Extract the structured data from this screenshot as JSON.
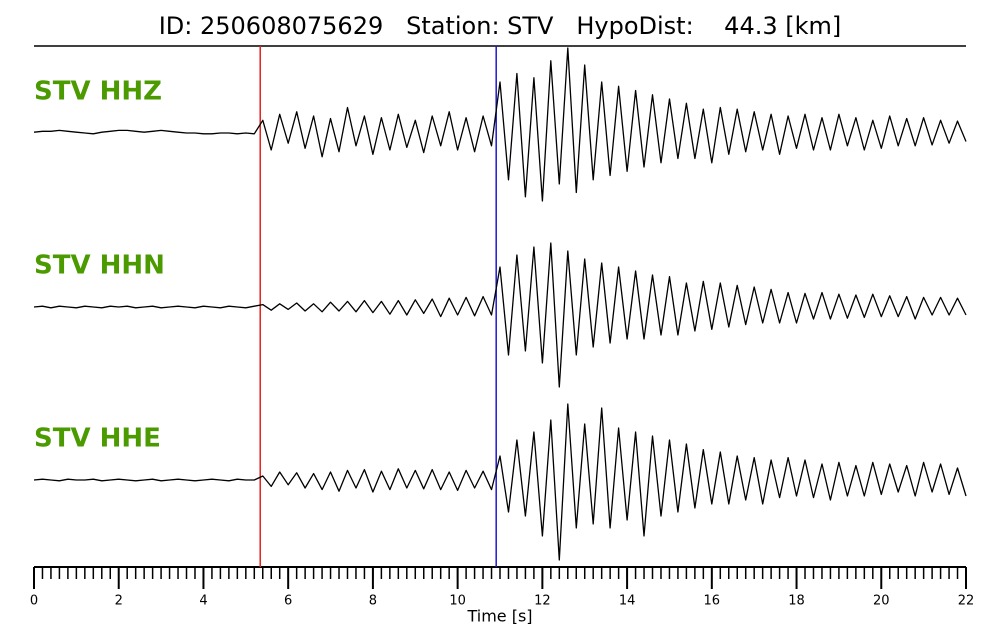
{
  "chart_data": {
    "type": "line",
    "title": "ID: 250608075629   Station: STV   HypoDist:    44.3 [km]",
    "x_label": "Time [s]",
    "xlim": [
      0,
      22
    ],
    "xticks": [
      0,
      2,
      4,
      6,
      8,
      10,
      12,
      14,
      16,
      18,
      20,
      22
    ],
    "xminorstep": 0.2,
    "label_color": "#4a9a00",
    "vlines": [
      {
        "x": 5.34,
        "color": "#e8201a"
      },
      {
        "x": 10.91,
        "color": "#1a1ad0"
      }
    ],
    "x": [
      0,
      0.2,
      0.4,
      0.6,
      0.8,
      1,
      1.2,
      1.4,
      1.6,
      1.8,
      2,
      2.2,
      2.4,
      2.6,
      2.8,
      3,
      3.2,
      3.4,
      3.6,
      3.8,
      4,
      4.2,
      4.4,
      4.6,
      4.8,
      5,
      5.2,
      5.4,
      5.6,
      5.8,
      6,
      6.2,
      6.4,
      6.6,
      6.8,
      7,
      7.2,
      7.4,
      7.6,
      7.8,
      8,
      8.2,
      8.4,
      8.6,
      8.8,
      9,
      9.2,
      9.4,
      9.6,
      9.8,
      10,
      10.2,
      10.4,
      10.6,
      10.8,
      11,
      11.2,
      11.4,
      11.6,
      11.8,
      12,
      12.2,
      12.4,
      12.6,
      12.8,
      13,
      13.2,
      13.4,
      13.6,
      13.8,
      14,
      14.2,
      14.4,
      14.6,
      14.8,
      15,
      15.2,
      15.4,
      15.6,
      15.8,
      16,
      16.2,
      16.4,
      16.6,
      16.8,
      17,
      17.2,
      17.4,
      17.6,
      17.8,
      18,
      18.2,
      18.4,
      18.6,
      18.8,
      19,
      19.2,
      19.4,
      19.6,
      19.8,
      20,
      20.2,
      20.4,
      20.6,
      20.8,
      21,
      21.2,
      21.4,
      21.6,
      21.8,
      22
    ],
    "series": [
      {
        "name": "STV HHZ",
        "color": "#000000",
        "values": [
          0.01,
          0.02,
          0.02,
          0.03,
          0.02,
          0.01,
          0,
          -0.01,
          0.01,
          0.02,
          0.03,
          0.03,
          0.02,
          0.01,
          0.02,
          0.03,
          0.02,
          0.01,
          0,
          0,
          -0.01,
          -0.01,
          0,
          0,
          -0.01,
          0,
          -0.01,
          0.15,
          -0.2,
          0.22,
          -0.12,
          0.25,
          -0.18,
          0.2,
          -0.28,
          0.17,
          -0.22,
          0.3,
          -0.15,
          0.2,
          -0.25,
          0.18,
          -0.2,
          0.22,
          -0.17,
          0.15,
          -0.23,
          0.2,
          -0.15,
          0.25,
          -0.2,
          0.18,
          -0.22,
          0.2,
          -0.15,
          0.6,
          -0.55,
          0.7,
          -0.75,
          0.65,
          -0.8,
          0.85,
          -0.6,
          1.0,
          -0.7,
          0.8,
          -0.55,
          0.6,
          -0.5,
          0.55,
          -0.45,
          0.5,
          -0.4,
          0.45,
          -0.35,
          0.4,
          -0.3,
          0.35,
          -0.3,
          0.28,
          -0.35,
          0.3,
          -0.25,
          0.28,
          -0.22,
          0.25,
          -0.2,
          0.22,
          -0.25,
          0.2,
          -0.18,
          0.22,
          -0.2,
          0.18,
          -0.2,
          0.22,
          -0.15,
          0.18,
          -0.2,
          0.15,
          -0.18,
          0.2,
          -0.15,
          0.17,
          -0.15,
          0.18,
          -0.14,
          0.15,
          -0.12,
          0.14,
          -0.1
        ]
      },
      {
        "name": "STV HHN",
        "color": "#000000",
        "values": [
          0,
          0.01,
          -0.01,
          0.01,
          0,
          -0.01,
          0.01,
          0,
          -0.01,
          0.01,
          0,
          0.01,
          -0.01,
          0,
          0.01,
          -0.01,
          0,
          0.01,
          0,
          -0.01,
          0.01,
          0,
          -0.01,
          0.01,
          0,
          -0.01,
          0.01,
          0.03,
          -0.04,
          0.04,
          -0.03,
          0.05,
          -0.05,
          0.04,
          -0.06,
          0.06,
          -0.05,
          0.07,
          -0.06,
          0.08,
          -0.07,
          0.07,
          -0.09,
          0.08,
          -0.1,
          0.09,
          -0.08,
          0.1,
          -0.12,
          0.11,
          -0.1,
          0.12,
          -0.11,
          0.13,
          -0.1,
          0.5,
          -0.6,
          0.65,
          -0.55,
          0.75,
          -0.7,
          0.8,
          -1.0,
          0.7,
          -0.6,
          0.6,
          -0.5,
          0.55,
          -0.45,
          0.5,
          -0.4,
          0.45,
          -0.4,
          0.4,
          -0.35,
          0.38,
          -0.35,
          0.3,
          -0.3,
          0.32,
          -0.28,
          0.3,
          -0.25,
          0.27,
          -0.22,
          0.25,
          -0.2,
          0.22,
          -0.2,
          0.18,
          -0.2,
          0.17,
          -0.15,
          0.18,
          -0.15,
          0.16,
          -0.14,
          0.15,
          -0.13,
          0.16,
          -0.12,
          0.14,
          -0.12,
          0.13,
          -0.15,
          0.12,
          -0.1,
          0.12,
          -0.1,
          0.11,
          -0.1
        ]
      },
      {
        "name": "STV HHE",
        "color": "#000000",
        "values": [
          0,
          0.01,
          0,
          -0.01,
          0.01,
          0,
          0,
          0.01,
          -0.01,
          0,
          0.01,
          0,
          -0.01,
          0,
          0.01,
          -0.01,
          0,
          0.01,
          0,
          -0.01,
          0,
          0.01,
          0,
          -0.01,
          0.01,
          0,
          0,
          0.05,
          -0.08,
          0.1,
          -0.06,
          0.09,
          -0.1,
          0.08,
          -0.12,
          0.1,
          -0.14,
          0.12,
          -0.1,
          0.13,
          -0.15,
          0.11,
          -0.12,
          0.14,
          -0.1,
          0.12,
          -0.11,
          0.13,
          -0.12,
          0.1,
          -0.13,
          0.12,
          -0.1,
          0.11,
          -0.12,
          0.3,
          -0.4,
          0.5,
          -0.45,
          0.6,
          -0.7,
          0.75,
          -1.0,
          0.95,
          -0.6,
          0.7,
          -0.55,
          0.9,
          -0.6,
          0.65,
          -0.5,
          0.6,
          -0.7,
          0.55,
          -0.45,
          0.5,
          -0.4,
          0.45,
          -0.35,
          0.38,
          -0.3,
          0.35,
          -0.3,
          0.3,
          -0.25,
          0.28,
          -0.3,
          0.25,
          -0.22,
          0.28,
          -0.2,
          0.25,
          -0.22,
          0.2,
          -0.25,
          0.22,
          -0.2,
          0.18,
          -0.2,
          0.22,
          -0.18,
          0.2,
          -0.15,
          0.18,
          -0.2,
          0.22,
          -0.15,
          0.2,
          -0.18,
          0.15,
          -0.2
        ]
      }
    ]
  }
}
